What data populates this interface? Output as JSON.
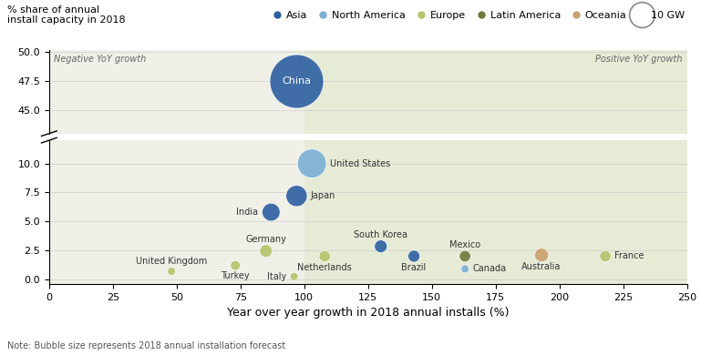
{
  "chart_data": [
    {
      "type": "bubble",
      "ylabel": "% share of annual\ninstall capacity in 2018",
      "xlim": [
        0,
        250
      ],
      "ylim": [
        43.0,
        50.2
      ],
      "yticks": [
        {
          "value": 45.0,
          "label": "45.0"
        },
        47.5,
        {
          "value": 50.0,
          "label": "50.0"
        }
      ],
      "tick_labels": "y",
      "grid": "y",
      "regions": [
        {
          "label": "Negative YoY growth",
          "x": [
            0,
            100
          ],
          "color": "#f0f0e8"
        },
        {
          "label": "Positive YoY growth",
          "x": [
            100,
            250
          ],
          "color": "#e6ebd6"
        }
      ],
      "x": [
        97
      ],
      "values": [
        47.5
      ],
      "point_labels": [
        "China"
      ],
      "sizes": [
        45
      ],
      "colors": [
        "#2d5fa0"
      ],
      "legend": "upper right",
      "legend_entries": [
        {
          "label": "Asia",
          "color": "#2d5fa0"
        },
        {
          "label": "North America",
          "color": "#7ab0d4"
        },
        {
          "label": "Europe",
          "color": "#b5c46a"
        },
        {
          "label": "Latin America",
          "color": "#6b7a3a"
        },
        {
          "label": "Oceania",
          "color": "#c8a06e"
        }
      ],
      "size_legend": {
        "value": 10,
        "label": "10 GW"
      }
    },
    {
      "type": "bubble",
      "xlabel": "Year over year growth in 2018 annual installs (%)",
      "note": "Note: Bubble size represents 2018 annual installation forecast",
      "xlim": [
        0,
        250
      ],
      "xticks": [
        0,
        25,
        50,
        75,
        100,
        125,
        150,
        175,
        200,
        225,
        250
      ],
      "ylim": [
        -0.4,
        12.0
      ],
      "yticks": [
        {
          "value": 0.0,
          "label": "0.0"
        },
        2.5,
        {
          "value": 5.0,
          "label": "5.0"
        },
        7.5,
        {
          "value": 10.0,
          "label": "10.0"
        }
      ],
      "grid": "y",
      "regions": [
        {
          "x": [
            0,
            100
          ],
          "color": "#f0f0e8"
        },
        {
          "x": [
            100,
            250
          ],
          "color": "#e6ebd6"
        }
      ],
      "x": [
        103,
        97,
        87,
        130,
        143,
        163,
        163,
        193,
        218,
        108,
        85,
        96,
        73,
        48
      ],
      "values": [
        10.0,
        7.2,
        5.8,
        2.85,
        2.0,
        2.0,
        0.9,
        2.1,
        2.0,
        2.0,
        2.45,
        0.25,
        1.2,
        0.7
      ],
      "point_labels": [
        "United States",
        "Japan",
        "India",
        "South Korea",
        "Brazil",
        "Mexico",
        "Canada",
        "Australia",
        "France",
        "Netherlands",
        "Germany",
        "Italy",
        "Turkey",
        "United Kingdom"
      ],
      "sizes": [
        13,
        7,
        5,
        2.5,
        2.2,
        2,
        1,
        3,
        2,
        2,
        2.5,
        1,
        1.5,
        1
      ],
      "colors": [
        "#7ab0d4",
        "#2d5fa0",
        "#2d5fa0",
        "#2d5fa0",
        "#2d5fa0",
        "#6b7a3a",
        "#7ab0d4",
        "#c8a06e",
        "#b5c46a",
        "#b5c46a",
        "#b5c46a",
        "#b5c46a",
        "#b5c46a",
        "#b5c46a"
      ]
    }
  ]
}
